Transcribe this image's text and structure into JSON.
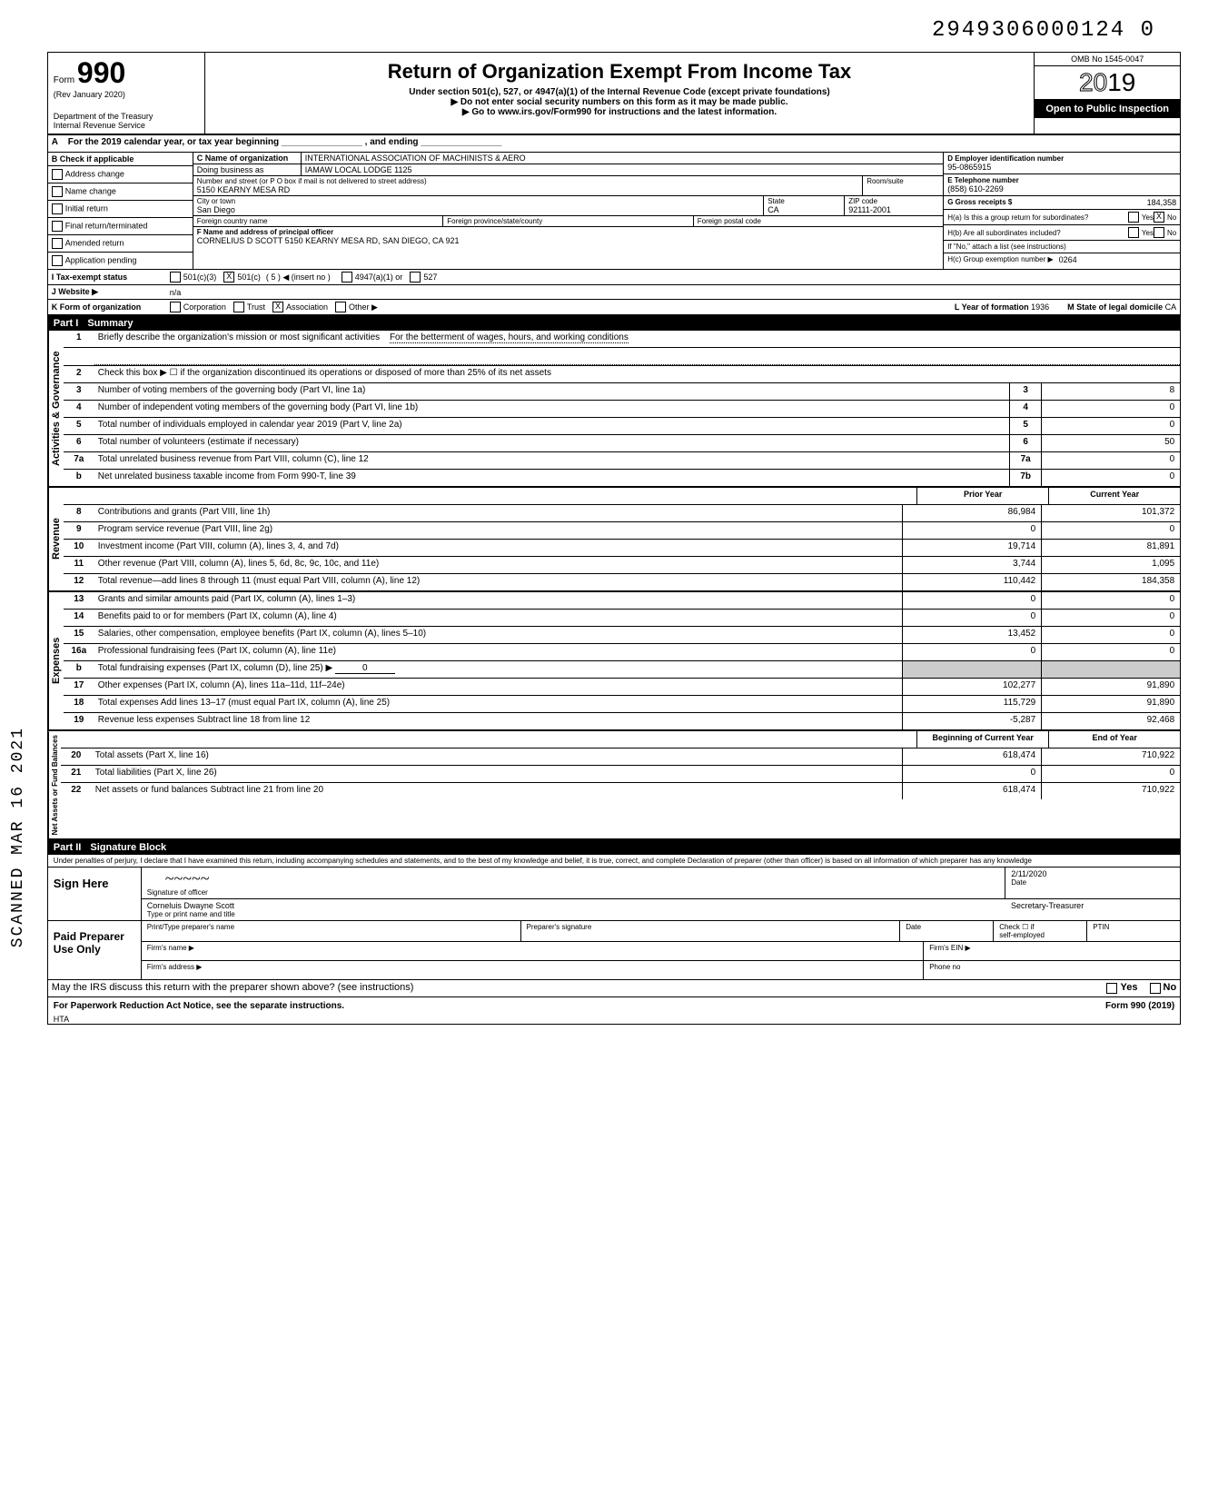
{
  "page_number": "2949306000124 0",
  "scanned_stamp": "SCANNED MAR 16 2021",
  "header": {
    "form_prefix": "Form",
    "form_number": "990",
    "rev": "(Rev January 2020)",
    "dept": "Department of the Treasury",
    "irs": "Internal Revenue Service",
    "title": "Return of Organization Exempt From Income Tax",
    "subtitle1": "Under section 501(c), 527, or 4947(a)(1) of the Internal Revenue Code (except private foundations)",
    "subtitle2": "▶ Do not enter social security numbers on this form as it may be made public.",
    "subtitle3": "▶ Go to www.irs.gov/Form990 for instructions and the latest information.",
    "omb": "OMB No 1545-0047",
    "year": "2019",
    "open": "Open to Public Inspection"
  },
  "lineA": "For the 2019 calendar year, or tax year beginning ________________ , and ending ________________",
  "sectionB": {
    "label": "B Check if applicable",
    "items": [
      "Address change",
      "Name change",
      "Initial return",
      "Final return/terminated",
      "Amended return",
      "Application pending"
    ]
  },
  "sectionC": {
    "name_label": "C Name of organization",
    "name": "INTERNATIONAL ASSOCIATION OF MACHINISTS & AERO",
    "dba_label": "Doing business as",
    "dba": "IAMAW LOCAL LODGE 1125",
    "street_label": "Number and street (or P O box if mail is not delivered to street address)",
    "street": "5150 KEARNY MESA RD",
    "room_label": "Room/suite",
    "city_label": "City or town",
    "city": "San Diego",
    "state_label": "State",
    "state": "CA",
    "zip_label": "ZIP code",
    "zip": "92111-2001",
    "foreign_country_label": "Foreign country name",
    "foreign_province_label": "Foreign province/state/county",
    "foreign_postal_label": "Foreign postal code"
  },
  "sectionD": {
    "ein_label": "D Employer identification number",
    "ein": "95-0865915",
    "phone_label": "E Telephone number",
    "phone": "(858) 610-2269",
    "gross_label": "G Gross receipts $",
    "gross": "184,358"
  },
  "sectionF": {
    "label": "F Name and address of principal officer",
    "value": "CORNELIUS D SCOTT 5150 KEARNY MESA RD, SAN DIEGO, CA 921"
  },
  "sectionH": {
    "a_label": "H(a) Is this a group return for subordinates?",
    "a_yes": "Yes",
    "a_no": "No",
    "a_checked": "X",
    "b_label": "H(b) Are all subordinates included?",
    "b_note": "If \"No,\" attach a list (see instructions)",
    "c_label": "H(c) Group exemption number ▶",
    "c_value": "0264"
  },
  "sectionI": {
    "label": "I   Tax-exempt status",
    "opt1": "501(c)(3)",
    "opt2": "501(c)",
    "opt2_checked": "X",
    "opt2_num": "5",
    "opt2_note": "◀ (insert no )",
    "opt3": "4947(a)(1) or",
    "opt4": "527"
  },
  "sectionJ": {
    "label": "J   Website ▶",
    "value": "n/a"
  },
  "sectionK": {
    "label": "K  Form of organization",
    "opts": [
      "Corporation",
      "Trust",
      "Association",
      "Other ▶"
    ],
    "checked": "X",
    "year_label": "L Year of formation",
    "year": "1936",
    "state_label": "M State of legal domicile",
    "state": "CA"
  },
  "partI": {
    "label": "Part I",
    "title": "Summary"
  },
  "activities": {
    "label": "Activities & Governance",
    "line1_desc": "Briefly describe the organization's mission or most significant activities",
    "line1_val": "For the betterment of wages, hours, and working conditions",
    "line2_desc": "Check this box ▶ ☐ if the organization discontinued its operations or disposed of more than 25% of its net assets",
    "rows": [
      {
        "n": "3",
        "desc": "Number of voting members of the governing body (Part VI, line 1a)",
        "box": "3",
        "val": "8"
      },
      {
        "n": "4",
        "desc": "Number of independent voting members of the governing body (Part VI, line 1b)",
        "box": "4",
        "val": "0"
      },
      {
        "n": "5",
        "desc": "Total number of individuals employed in calendar year 2019 (Part V, line 2a)",
        "box": "5",
        "val": "0"
      },
      {
        "n": "6",
        "desc": "Total number of volunteers (estimate if necessary)",
        "box": "6",
        "val": "50"
      },
      {
        "n": "7a",
        "desc": "Total unrelated business revenue from Part VIII, column (C), line 12",
        "box": "7a",
        "val": "0"
      },
      {
        "n": "b",
        "desc": "Net unrelated business taxable income from Form 990-T, line 39",
        "box": "7b",
        "val": "0"
      }
    ]
  },
  "revenue": {
    "label": "Revenue",
    "header_prior": "Prior Year",
    "header_current": "Current Year",
    "rows": [
      {
        "n": "8",
        "desc": "Contributions and grants (Part VIII, line 1h)",
        "prior": "86,984",
        "curr": "101,372"
      },
      {
        "n": "9",
        "desc": "Program service revenue (Part VIII, line 2g)",
        "prior": "0",
        "curr": "0"
      },
      {
        "n": "10",
        "desc": "Investment income (Part VIII, column (A), lines 3, 4, and 7d)",
        "prior": "19,714",
        "curr": "81,891"
      },
      {
        "n": "11",
        "desc": "Other revenue (Part VIII, column (A), lines 5, 6d, 8c, 9c, 10c, and 11e)",
        "prior": "3,744",
        "curr": "1,095"
      },
      {
        "n": "12",
        "desc": "Total revenue—add lines 8 through 11 (must equal Part VIII, column (A), line 12)",
        "prior": "110,442",
        "curr": "184,358"
      }
    ],
    "date_stamp": "02182020"
  },
  "expenses": {
    "label": "Expenses",
    "rows": [
      {
        "n": "13",
        "desc": "Grants and similar amounts paid (Part IX, column (A), lines 1–3)",
        "prior": "0",
        "curr": "0"
      },
      {
        "n": "14",
        "desc": "Benefits paid to or for members (Part IX, column (A), line 4)",
        "prior": "0",
        "curr": "0"
      },
      {
        "n": "15",
        "desc": "Salaries, other compensation, employee benefits (Part IX, column (A), lines 5–10)",
        "prior": "13,452",
        "curr": "0"
      },
      {
        "n": "16a",
        "desc": "Professional fundraising fees (Part IX, column (A), line 11e)",
        "prior": "0",
        "curr": "0"
      },
      {
        "n": "b",
        "desc": "Total fundraising expenses (Part IX, column (D), line 25) ▶",
        "box": "0",
        "prior": "",
        "curr": ""
      },
      {
        "n": "17",
        "desc": "Other expenses (Part IX, column (A), lines 11a–11d, 11f–24e)",
        "prior": "102,277",
        "curr": "91,890"
      },
      {
        "n": "18",
        "desc": "Total expenses Add lines 13–17 (must equal Part IX, column (A), line 25)",
        "prior": "115,729",
        "curr": "91,890"
      },
      {
        "n": "19",
        "desc": "Revenue less expenses Subtract line 18 from line 12",
        "prior": "-5,287",
        "curr": "92,468"
      }
    ]
  },
  "netassets": {
    "label": "Net Assets or Fund Balances",
    "header_begin": "Beginning of Current Year",
    "header_end": "End of Year",
    "rows": [
      {
        "n": "20",
        "desc": "Total assets (Part X, line 16)",
        "begin": "618,474",
        "end": "710,922"
      },
      {
        "n": "21",
        "desc": "Total liabilities (Part X, line 26)",
        "begin": "0",
        "end": "0"
      },
      {
        "n": "22",
        "desc": "Net assets or fund balances Subtract line 21 from line 20",
        "begin": "618,474",
        "end": "710,922"
      }
    ]
  },
  "partII": {
    "label": "Part II",
    "title": "Signature Block",
    "perjury": "Under penalties of perjury, I declare that I have examined this return, including accompanying schedules and statements, and to the best of my knowledge and belief, it is true, correct, and complete Declaration of preparer (other than officer) is based on all information of which preparer has any knowledge"
  },
  "sign": {
    "label": "Sign Here",
    "sig_label": "Signature of officer",
    "date_label": "Date",
    "date": "2/11/2020",
    "name": "Corneluis Dwayne Scott",
    "title": "Secretary-Treasurer",
    "name_label": "Type or print name and title"
  },
  "paid": {
    "label": "Paid Preparer Use Only",
    "col1": "Print/Type preparer's name",
    "col2": "Preparer's signature",
    "col3": "Date",
    "col4a": "Check ☐ if",
    "col4b": "self-employed",
    "col5": "PTIN",
    "firm_name": "Firm's name ▶",
    "firm_ein": "Firm's EIN ▶",
    "firm_addr": "Firm's address ▶",
    "phone": "Phone no"
  },
  "footer": {
    "discuss": "May the IRS discuss this return with the preparer shown above? (see instructions)",
    "yes": "Yes",
    "no": "No",
    "paperwork": "For Paperwork Reduction Act Notice, see the separate instructions.",
    "hta": "HTA",
    "form": "Form 990 (2019)"
  }
}
